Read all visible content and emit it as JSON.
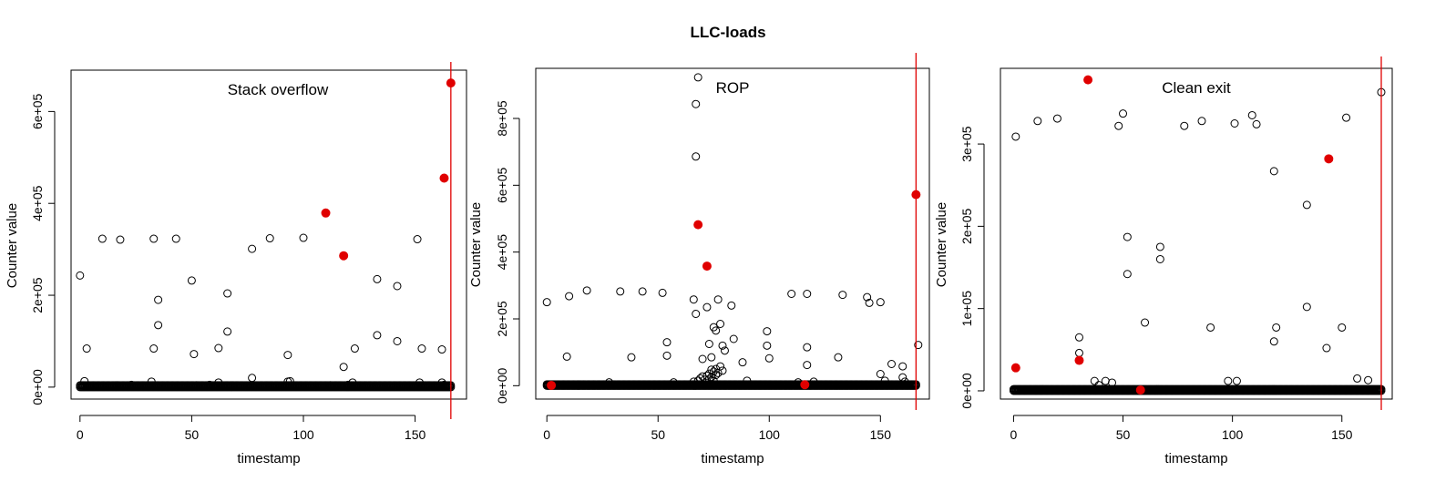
{
  "figure": {
    "title": "LLC-loads"
  },
  "colors": {
    "open_point": "#000000",
    "highlight": "#e00000",
    "vline": "#e00000"
  },
  "chart_data": [
    {
      "type": "scatter",
      "title": "Stack overflow",
      "xlabel": "timestamp",
      "ylabel": "Counter value",
      "xlim": [
        -4,
        173
      ],
      "ylim": [
        -26000,
        690000
      ],
      "xticks": [
        0,
        50,
        100,
        150
      ],
      "xtick_labels": [
        "0",
        "50",
        "100",
        "150"
      ],
      "yticks": [
        0,
        200000,
        400000,
        600000
      ],
      "ytick_labels": [
        "0e+00",
        "2e+05",
        "4e+05",
        "6e+05"
      ],
      "vline_x": 166,
      "baseline": {
        "x_start": 0,
        "x_end": 166,
        "values": [
          0,
          4000
        ]
      },
      "points": [
        [
          0,
          243000
        ],
        [
          3,
          84000
        ],
        [
          2,
          13000
        ],
        [
          10,
          323000
        ],
        [
          18,
          321000
        ],
        [
          23,
          5000
        ],
        [
          33,
          323000
        ],
        [
          33,
          84000
        ],
        [
          32,
          12000
        ],
        [
          35,
          190000
        ],
        [
          35,
          135000
        ],
        [
          43,
          323000
        ],
        [
          50,
          232000
        ],
        [
          51,
          72000
        ],
        [
          52,
          4000
        ],
        [
          58,
          5000
        ],
        [
          62,
          85000
        ],
        [
          62,
          10000
        ],
        [
          66,
          204000
        ],
        [
          66,
          121000
        ],
        [
          77,
          301000
        ],
        [
          77,
          20000
        ],
        [
          85,
          324000
        ],
        [
          93,
          70000
        ],
        [
          93,
          12000
        ],
        [
          94,
          13000
        ],
        [
          100,
          325000
        ],
        [
          112,
          4000
        ],
        [
          118,
          44000
        ],
        [
          120,
          5000
        ],
        [
          122,
          10000
        ],
        [
          123,
          84000
        ],
        [
          133,
          235000
        ],
        [
          133,
          113000
        ],
        [
          142,
          220000
        ],
        [
          142,
          100000
        ],
        [
          151,
          322000
        ],
        [
          152,
          10000
        ],
        [
          153,
          84000
        ],
        [
          162,
          82000
        ],
        [
          162,
          10000
        ],
        [
          163,
          5000
        ]
      ],
      "highlights": [
        [
          110,
          379000
        ],
        [
          118,
          286000
        ],
        [
          163,
          455000
        ],
        [
          166,
          662000
        ]
      ]
    },
    {
      "type": "scatter",
      "title": "ROP",
      "xlabel": "timestamp",
      "ylabel": "Counter value",
      "xlim": [
        -5,
        172
      ],
      "ylim": [
        -40000,
        950000
      ],
      "xticks": [
        0,
        50,
        100,
        150
      ],
      "xtick_labels": [
        "0",
        "50",
        "100",
        "150"
      ],
      "yticks": [
        0,
        200000,
        400000,
        600000,
        800000
      ],
      "ytick_labels": [
        "0e+00",
        "2e+05",
        "4e+05",
        "6e+05",
        "8e+05"
      ],
      "vline_x": 166,
      "baseline": {
        "x_start": 0,
        "x_end": 166,
        "values": [
          0,
          4000
        ]
      },
      "points": [
        [
          0,
          250000
        ],
        [
          9,
          87000
        ],
        [
          10,
          268000
        ],
        [
          18,
          285000
        ],
        [
          28,
          10000
        ],
        [
          33,
          282000
        ],
        [
          38,
          85000
        ],
        [
          43,
          282000
        ],
        [
          52,
          278000
        ],
        [
          54,
          130000
        ],
        [
          54,
          90000
        ],
        [
          57,
          10000
        ],
        [
          66,
          258000
        ],
        [
          67,
          215000
        ],
        [
          68,
          923000
        ],
        [
          67,
          843000
        ],
        [
          67,
          686000
        ],
        [
          70,
          80000
        ],
        [
          72,
          235000
        ],
        [
          73,
          125000
        ],
        [
          74,
          85000
        ],
        [
          75,
          175000
        ],
        [
          76,
          165000
        ],
        [
          77,
          258000
        ],
        [
          78,
          185000
        ],
        [
          79,
          120000
        ],
        [
          80,
          105000
        ],
        [
          83,
          240000
        ],
        [
          84,
          140000
        ],
        [
          88,
          70000
        ],
        [
          90,
          15000
        ],
        [
          99,
          163000
        ],
        [
          99,
          120000
        ],
        [
          100,
          82000
        ],
        [
          110,
          275000
        ],
        [
          113,
          10000
        ],
        [
          117,
          275000
        ],
        [
          117,
          115000
        ],
        [
          117,
          62000
        ],
        [
          120,
          12000
        ],
        [
          131,
          85000
        ],
        [
          133,
          272000
        ],
        [
          144,
          265000
        ],
        [
          145,
          248000
        ],
        [
          150,
          250000
        ],
        [
          150,
          35000
        ],
        [
          152,
          15000
        ],
        [
          155,
          65000
        ],
        [
          160,
          58000
        ],
        [
          160,
          25000
        ],
        [
          161,
          12000
        ],
        [
          167,
          122000
        ],
        [
          68,
          15000
        ],
        [
          69,
          22000
        ],
        [
          70,
          28000
        ],
        [
          71,
          18000
        ],
        [
          72,
          30000
        ],
        [
          73,
          36000
        ],
        [
          74,
          26000
        ],
        [
          75,
          42000
        ],
        [
          76,
          50000
        ],
        [
          77,
          38000
        ],
        [
          78,
          58000
        ],
        [
          79,
          45000
        ],
        [
          74,
          48000
        ],
        [
          76,
          32000
        ],
        [
          66,
          12000
        ],
        [
          73,
          20000
        ],
        [
          75,
          15000
        ]
      ],
      "highlights": [
        [
          2,
          1000
        ],
        [
          68,
          482000
        ],
        [
          72,
          358000
        ],
        [
          116,
          3000
        ],
        [
          166,
          572000
        ]
      ]
    },
    {
      "type": "scatter",
      "title": "Clean exit",
      "xlabel": "timestamp",
      "ylabel": "Counter value",
      "xlim": [
        -6,
        173
      ],
      "ylim": [
        -10000,
        392000
      ],
      "xticks": [
        0,
        50,
        100,
        150
      ],
      "xtick_labels": [
        "0",
        "50",
        "100",
        "150"
      ],
      "yticks": [
        0,
        100000,
        200000,
        300000
      ],
      "ytick_labels": [
        "0e+00",
        "1e+05",
        "2e+05",
        "3e+05"
      ],
      "vline_x": 168,
      "baseline": {
        "x_start": 0,
        "x_end": 168,
        "values": [
          0,
          2000
        ]
      },
      "points": [
        [
          1,
          309000
        ],
        [
          11,
          328000
        ],
        [
          20,
          331000
        ],
        [
          30,
          65000
        ],
        [
          30,
          46000
        ],
        [
          37,
          12000
        ],
        [
          39,
          7000
        ],
        [
          42,
          12000
        ],
        [
          45,
          10000
        ],
        [
          48,
          322000
        ],
        [
          50,
          337000
        ],
        [
          52,
          187000
        ],
        [
          52,
          142000
        ],
        [
          60,
          83000
        ],
        [
          67,
          175000
        ],
        [
          67,
          160000
        ],
        [
          78,
          322000
        ],
        [
          86,
          328000
        ],
        [
          90,
          77000
        ],
        [
          98,
          12000
        ],
        [
          101,
          325000
        ],
        [
          102,
          12000
        ],
        [
          109,
          335000
        ],
        [
          111,
          324000
        ],
        [
          119,
          267000
        ],
        [
          119,
          60000
        ],
        [
          120,
          77000
        ],
        [
          134,
          226000
        ],
        [
          134,
          102000
        ],
        [
          143,
          52000
        ],
        [
          150,
          77000
        ],
        [
          152,
          332000
        ],
        [
          157,
          15000
        ],
        [
          162,
          13000
        ],
        [
          168,
          363000
        ]
      ],
      "highlights": [
        [
          1,
          28000
        ],
        [
          30,
          37000
        ],
        [
          34,
          378000
        ],
        [
          58,
          1000
        ],
        [
          144,
          282000
        ]
      ]
    }
  ]
}
